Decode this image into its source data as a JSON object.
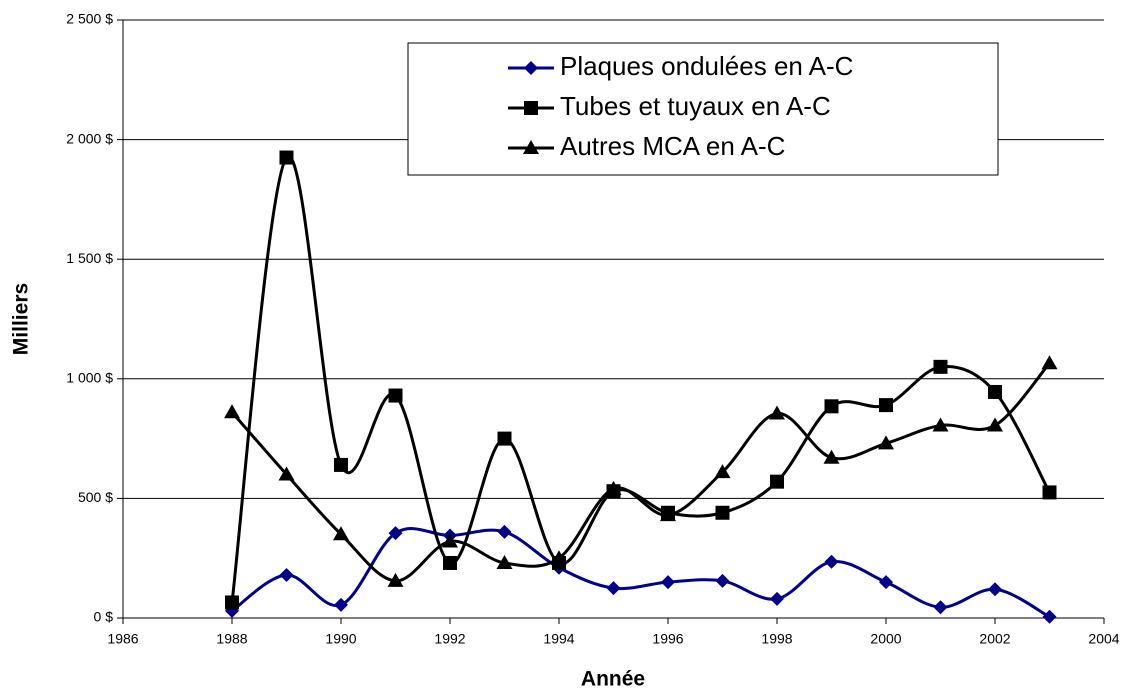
{
  "chart_data": {
    "type": "line",
    "smooth": true,
    "xlabel": "Année",
    "ylabel": "Milliers",
    "x": [
      1988,
      1989,
      1990,
      1991,
      1992,
      1993,
      1994,
      1995,
      1996,
      1997,
      1998,
      1999,
      2000,
      2001,
      2002,
      2003
    ],
    "series": [
      {
        "name": "Plaques ondulées en A-C",
        "color": "#00008b",
        "marker": "diamond",
        "values": [
          30,
          180,
          55,
          355,
          345,
          360,
          210,
          125,
          150,
          155,
          80,
          235,
          150,
          45,
          120,
          5
        ]
      },
      {
        "name": "Tubes et tuyaux en A-C",
        "color": "#000000",
        "marker": "square",
        "values": [
          65,
          1925,
          640,
          930,
          230,
          750,
          230,
          530,
          440,
          440,
          570,
          885,
          890,
          1050,
          945,
          525
        ]
      },
      {
        "name": "Autres MCA en A-C",
        "color": "#000000",
        "marker": "triangle",
        "values": [
          860,
          600,
          350,
          155,
          320,
          230,
          250,
          540,
          430,
          610,
          855,
          670,
          730,
          805,
          805,
          1065
        ]
      }
    ],
    "xlim": [
      1986,
      2004
    ],
    "xticks": [
      1986,
      1988,
      1990,
      1992,
      1994,
      1996,
      1998,
      2000,
      2002,
      2004
    ],
    "ylim": [
      0,
      2500
    ],
    "yticks": [
      {
        "value": 0,
        "label": "0 $"
      },
      {
        "value": 500,
        "label": "500 $"
      },
      {
        "value": 1000,
        "label": "1 000 $"
      },
      {
        "value": 1500,
        "label": "1 500 $"
      },
      {
        "value": 2000,
        "label": "2 000 $"
      },
      {
        "value": 2500,
        "label": "2 500 $"
      }
    ],
    "grid": true,
    "legend": "top-right"
  }
}
